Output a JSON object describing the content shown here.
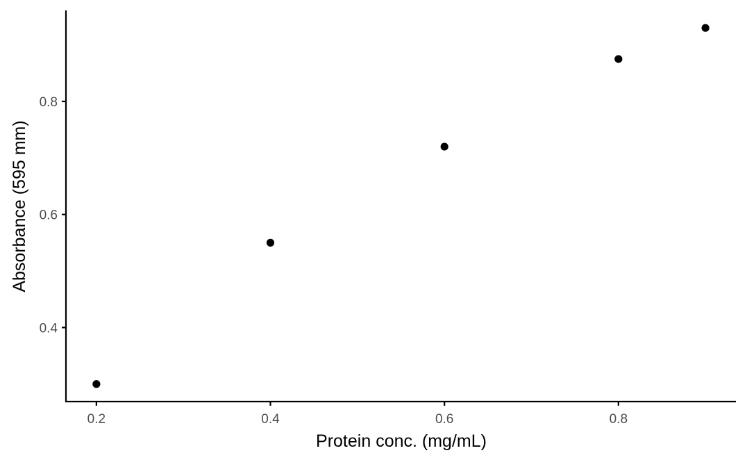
{
  "chart_data": {
    "type": "scatter",
    "xlabel": "Protein conc. (mg/mL)",
    "ylabel": "Absorbance (595 mm)",
    "x": [
      0.2,
      0.4,
      0.6,
      0.8,
      0.9
    ],
    "y": [
      0.3,
      0.55,
      0.72,
      0.875,
      0.93
    ],
    "xlim": [
      0.165,
      0.935
    ],
    "ylim": [
      0.269,
      0.961
    ],
    "x_ticks": [
      0.2,
      0.4,
      0.6,
      0.8
    ],
    "x_tick_labels": [
      "0.2",
      "0.4",
      "0.6",
      "0.8"
    ],
    "y_ticks": [
      0.4,
      0.6,
      0.8
    ],
    "y_tick_labels": [
      "0.4",
      "0.6",
      "0.8"
    ],
    "grid": false,
    "legend": "none",
    "point_color": "#000000"
  }
}
